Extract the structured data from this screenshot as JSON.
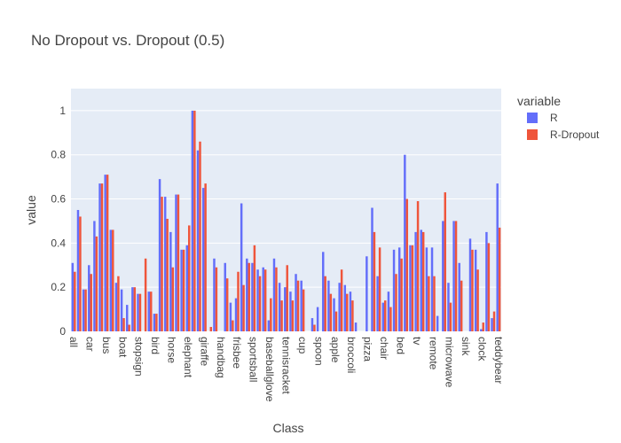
{
  "chart_data": {
    "type": "bar",
    "title": "No Dropout vs. Dropout (0.5)",
    "x_label": "Class",
    "y_label": "value",
    "legend_title": "variable",
    "legend_position": "right",
    "grid": true,
    "categories": [
      "all",
      null,
      null,
      "car",
      null,
      null,
      "bus",
      null,
      null,
      "boat",
      null,
      null,
      "stopsign",
      null,
      null,
      "bird",
      null,
      null,
      "horse",
      null,
      null,
      "elephant",
      null,
      null,
      "giraffe",
      null,
      null,
      "handbag",
      null,
      null,
      "frisbee",
      null,
      null,
      "sportsball",
      null,
      null,
      "baseballglove",
      null,
      null,
      "tennisracket",
      null,
      null,
      "cup",
      null,
      null,
      "spoon",
      null,
      null,
      "apple",
      null,
      null,
      "broccoli",
      null,
      null,
      "pizza",
      null,
      null,
      "chair",
      null,
      null,
      "bed",
      null,
      null,
      "tv",
      null,
      null,
      "remote",
      null,
      null,
      "microwave",
      null,
      null,
      "sink",
      null,
      null,
      "clock",
      null,
      null,
      "teddybear"
    ],
    "series": [
      {
        "name": "R",
        "color": "#636efa",
        "values": [
          0.31,
          0.55,
          0.19,
          0.3,
          0.5,
          0.67,
          0.71,
          0.46,
          0.22,
          0.19,
          0.12,
          0.2,
          0.17,
          0,
          0.18,
          0.08,
          0.69,
          0.61,
          0.45,
          0.62,
          0.37,
          0.39,
          1.0,
          0.82,
          0.65,
          0,
          0.33,
          0,
          0.31,
          0.13,
          0.15,
          0.58,
          0.33,
          0.31,
          0.28,
          0.29,
          0.05,
          0.33,
          0.22,
          0.2,
          0.18,
          0.26,
          0.23,
          0,
          0.06,
          0.11,
          0.36,
          0.23,
          0.15,
          0.22,
          0.21,
          0.18,
          0.04,
          0,
          0.34,
          0.56,
          0.25,
          0.13,
          0.18,
          0.37,
          0.38,
          0.8,
          0.39,
          0.45,
          0.46,
          0.38,
          0.38,
          0.07,
          0.5,
          0.22,
          0.5,
          0.31,
          0,
          0.42,
          0.37,
          0.01,
          0.45,
          0.06,
          0.67
        ]
      },
      {
        "name": "R-Dropout",
        "color": "#EF553B",
        "values": [
          0.27,
          0.52,
          0.19,
          0.26,
          0.43,
          0.67,
          0.71,
          0.46,
          0.25,
          0.06,
          0.03,
          0.2,
          0.17,
          0.33,
          0.18,
          0.08,
          0.61,
          0.51,
          0.29,
          0.62,
          0.37,
          0.48,
          1.0,
          0.86,
          0.67,
          0.02,
          0.29,
          0,
          0.24,
          0.05,
          0.27,
          0.21,
          0.31,
          0.39,
          0.25,
          0.28,
          0.15,
          0.29,
          0.14,
          0.3,
          0.14,
          0.23,
          0.19,
          0,
          0.03,
          0,
          0.25,
          0.17,
          0.09,
          0.28,
          0.17,
          0.14,
          0,
          0,
          0,
          0.45,
          0.38,
          0.14,
          0.11,
          0.26,
          0.33,
          0.6,
          0.39,
          0.59,
          0.45,
          0.25,
          0.25,
          0,
          0.63,
          0.13,
          0.5,
          0.23,
          0,
          0.37,
          0.28,
          0.04,
          0.4,
          0.09,
          0.47
        ]
      }
    ],
    "ylim": [
      0,
      1.1
    ],
    "yticks": [
      0,
      0.2,
      0.4,
      0.6,
      0.8,
      1
    ]
  }
}
